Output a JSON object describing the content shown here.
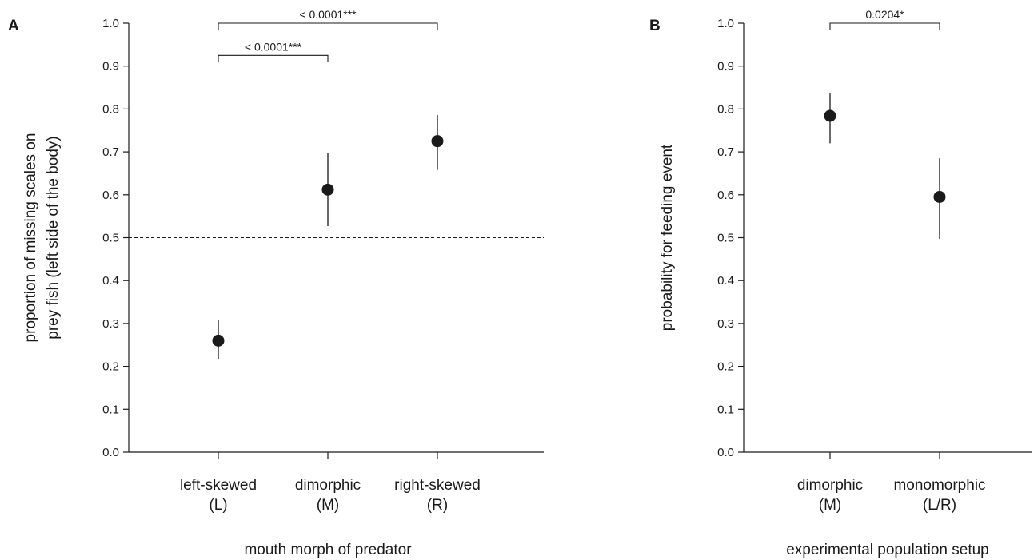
{
  "chart_data": [
    {
      "type": "scatter",
      "panel": "A",
      "categories": [
        [
          "left-skewed",
          "(L)"
        ],
        [
          "dimorphic",
          "(M)"
        ],
        [
          "right-skewed",
          "(R)"
        ]
      ],
      "values": [
        0.26,
        0.612,
        0.725
      ],
      "ci_low": [
        0.216,
        0.527,
        0.658
      ],
      "ci_high": [
        0.308,
        0.697,
        0.786
      ],
      "xlabel": "mouth morph of predator",
      "ylabel": [
        "proportion of missing scales on",
        "prey fish (left side of the body)"
      ],
      "ylim": [
        0.0,
        1.0
      ],
      "yticks": [
        "0.0",
        "0.1",
        "0.2",
        "0.3",
        "0.4",
        "0.5",
        "0.6",
        "0.7",
        "0.8",
        "0.9",
        "1.0"
      ],
      "reference_line": 0.5,
      "significance": [
        {
          "from": 0,
          "to": 1,
          "label": "< 0.0001***",
          "level": 0.925
        },
        {
          "from": 0,
          "to": 2,
          "label": "< 0.0001***",
          "level": 1.0
        }
      ]
    },
    {
      "type": "scatter",
      "panel": "B",
      "categories": [
        [
          "dimorphic",
          "(M)"
        ],
        [
          "monomorphic",
          "(L/R)"
        ]
      ],
      "values": [
        0.784,
        0.595
      ],
      "ci_low": [
        0.72,
        0.497
      ],
      "ci_high": [
        0.836,
        0.685
      ],
      "xlabel": "experimental population setup",
      "ylabel": [
        "probability for feeding event"
      ],
      "ylim": [
        0.0,
        1.0
      ],
      "yticks": [
        "0.0",
        "0.1",
        "0.2",
        "0.3",
        "0.4",
        "0.5",
        "0.6",
        "0.7",
        "0.8",
        "0.9",
        "1.0"
      ],
      "significance": [
        {
          "from": 0,
          "to": 1,
          "label": "0.0204*",
          "level": 1.0
        }
      ]
    }
  ]
}
